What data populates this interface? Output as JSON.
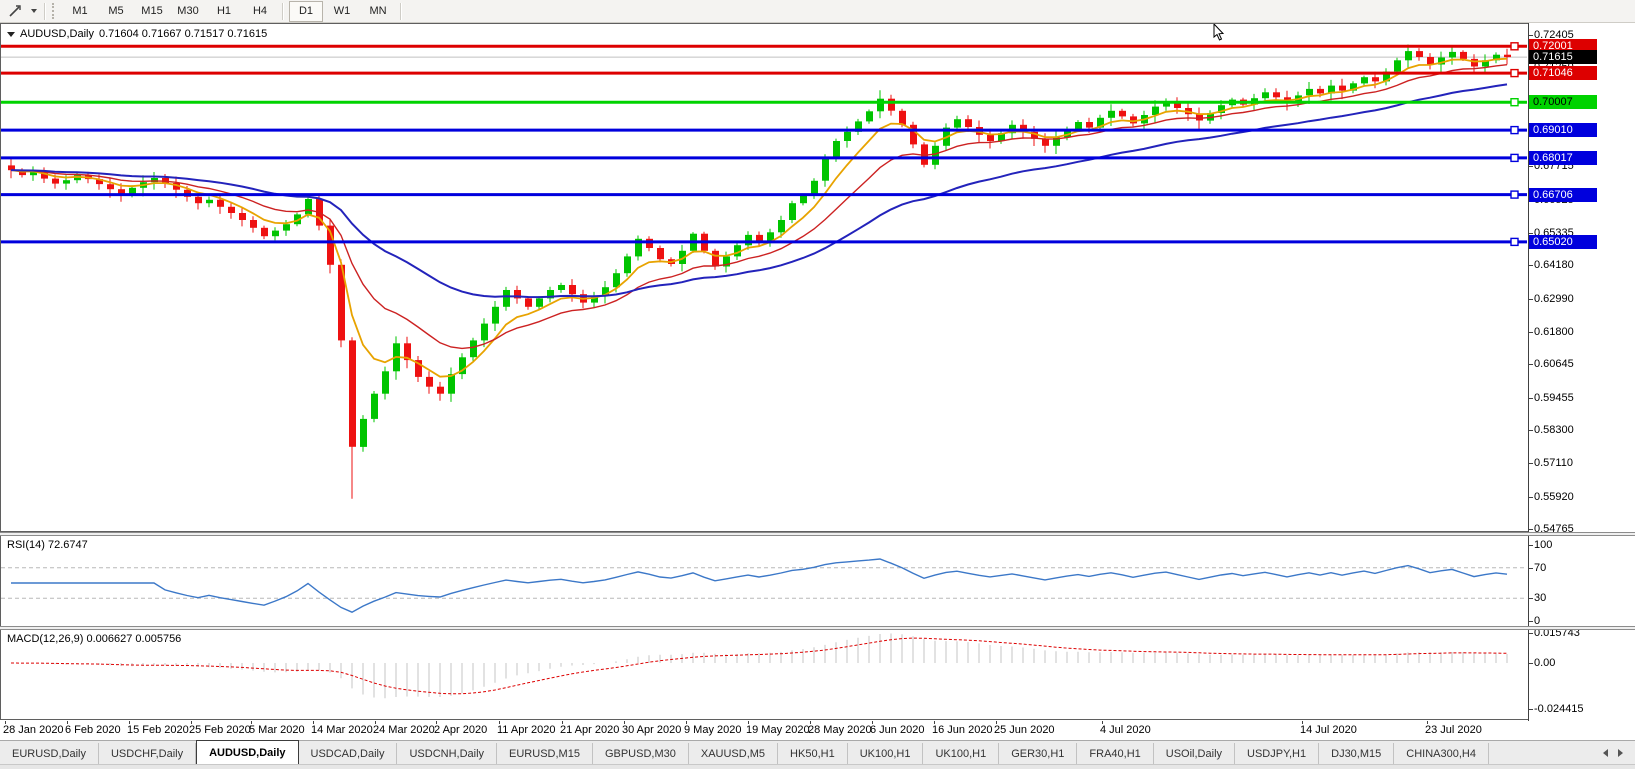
{
  "toolbar": {
    "timeframes": [
      "M1",
      "M5",
      "M15",
      "M30",
      "H1",
      "H4",
      "D1",
      "W1",
      "MN"
    ],
    "active_timeframe": "D1"
  },
  "chart_header": {
    "symbol_label": "AUDUSD,Daily",
    "ohlc_values": "0.71604 0.71667 0.71517 0.71615"
  },
  "indicators": {
    "rsi_label": "RSI(14)",
    "rsi_value": "72.6747",
    "macd_label": "MACD(12,26,9)",
    "macd_values": "0.006627 0.005756"
  },
  "tabs": {
    "items": [
      "EURUSD,Daily",
      "USDCHF,Daily",
      "AUDUSD,Daily",
      "USDCAD,Daily",
      "USDCNH,Daily",
      "EURUSD,M15",
      "GBPUSD,M30",
      "XAUUSD,M5",
      "HK50,H1",
      "UK100,H1",
      "UK100,H1",
      "GER30,H1",
      "FRA40,H1",
      "USOil,Daily",
      "USDJPY,H1",
      "DJ30,M15",
      "CHINA300,H4"
    ],
    "active_index": 2
  },
  "chart_data": {
    "type": "candlestick",
    "symbol": "AUDUSD",
    "timeframe": "Daily",
    "grid": false,
    "up_color": "#00c400",
    "down_color": "#ee1111",
    "price_axis_ticks": [
      "0.72405",
      "0.71250",
      "0.70060",
      "0.68870",
      "0.67715",
      "0.66525",
      "0.65335",
      "0.64180",
      "0.62990",
      "0.61800",
      "0.60645",
      "0.59455",
      "0.58300",
      "0.57110",
      "0.55920",
      "0.54765"
    ],
    "candles": {
      "first_open": 0.6775,
      "closes": [
        0.6758,
        0.674,
        0.6755,
        0.6728,
        0.671,
        0.6722,
        0.674,
        0.6726,
        0.6708,
        0.669,
        0.6672,
        0.6695,
        0.6715,
        0.673,
        0.6712,
        0.6688,
        0.6663,
        0.664,
        0.6652,
        0.6627,
        0.6605,
        0.658,
        0.6552,
        0.6522,
        0.6542,
        0.6565,
        0.66,
        0.6655,
        0.656,
        0.642,
        0.615,
        0.577,
        0.587,
        0.596,
        0.604,
        0.614,
        0.608,
        0.602,
        0.5985,
        0.596,
        0.603,
        0.609,
        0.615,
        0.621,
        0.627,
        0.633,
        0.63,
        0.627,
        0.63,
        0.633,
        0.6348,
        0.6315,
        0.6285,
        0.631,
        0.634,
        0.639,
        0.645,
        0.6513,
        0.648,
        0.644,
        0.6423,
        0.647,
        0.6531,
        0.647,
        0.6414,
        0.645,
        0.649,
        0.6527,
        0.65,
        0.6536,
        0.658,
        0.664,
        0.6667,
        0.672,
        0.6798,
        0.6862,
        0.6895,
        0.6932,
        0.6968,
        0.7013,
        0.697,
        0.692,
        0.685,
        0.6777,
        0.6845,
        0.691,
        0.694,
        0.6912,
        0.6884,
        0.6862,
        0.689,
        0.692,
        0.6895,
        0.687,
        0.6845,
        0.6875,
        0.6905,
        0.693,
        0.691,
        0.6945,
        0.697,
        0.695,
        0.6925,
        0.6955,
        0.6985,
        0.7002,
        0.698,
        0.6958,
        0.6935,
        0.6962,
        0.699,
        0.701,
        0.6992,
        0.7015,
        0.7036,
        0.7018,
        0.7,
        0.7025,
        0.7048,
        0.7032,
        0.706,
        0.7042,
        0.7068,
        0.709,
        0.7075,
        0.711,
        0.715,
        0.7183,
        0.7162,
        0.7135,
        0.716,
        0.718,
        0.7155,
        0.7128,
        0.715,
        0.717,
        0.71615
      ],
      "overrides": {
        "27": {
          "h": 0.6672
        },
        "31": {
          "l": 0.5585
        },
        "39": {
          "l": 0.5935
        },
        "64": {
          "l": 0.6402
        },
        "79": {
          "h": 0.7043
        },
        "131": {
          "h": 0.7197
        }
      }
    },
    "moving_averages": [
      {
        "period": 6,
        "color": "#e8a300",
        "width": 1.8
      },
      {
        "period": 14,
        "color": "#cc2222",
        "width": 1.4
      },
      {
        "period": 34,
        "color": "#2323bb",
        "width": 2
      }
    ],
    "hlines": [
      {
        "price": 0.72001,
        "label": "0.72001",
        "color": "#dd0000",
        "text_color": "#ffffff"
      },
      {
        "price": 0.71046,
        "label": "0.71046",
        "color": "#dd0000",
        "text_color": "#ffffff"
      },
      {
        "price": 0.70007,
        "label": "0.70007",
        "color": "#00d300",
        "text_color": "#000000"
      },
      {
        "price": 0.6901,
        "label": "0.69010",
        "color": "#0000dd",
        "text_color": "#ffffff"
      },
      {
        "price": 0.68017,
        "label": "0.68017",
        "color": "#0000dd",
        "text_color": "#ffffff"
      },
      {
        "price": 0.66706,
        "label": "0.66706",
        "color": "#0000dd",
        "text_color": "#ffffff"
      },
      {
        "price": 0.6502,
        "label": "0.65020",
        "color": "#0000dd",
        "text_color": "#ffffff"
      }
    ],
    "current_price_marker": {
      "price": 0.71615,
      "label": "0.71615",
      "bg": "#000000",
      "text_color": "#ffffff",
      "line_color": "#c0c0c0"
    },
    "time_axis": {
      "labels": [
        "28 Jan 2020",
        "6 Feb 2020",
        "15 Feb 2020",
        "25 Feb 2020",
        "5 Mar 2020",
        "14 Mar 2020",
        "24 Mar 2020",
        "2 Apr 2020",
        "11 Apr 2020",
        "21 Apr 2020",
        "30 Apr 2020",
        "9 May 2020",
        "19 May 2020",
        "28 May 2020",
        "6 Jun 2020",
        "16 Jun 2020",
        "25 Jun 2020",
        "4 Jul 2020",
        "14 Jul 2020",
        "23 Jul 2020"
      ],
      "x": [
        3,
        65,
        127,
        189,
        249,
        311,
        373,
        434,
        497,
        560,
        622,
        684,
        746,
        808,
        870,
        932,
        994,
        1100,
        1300,
        1425
      ]
    },
    "rsi": {
      "period": 14,
      "line_color": "#3c78c8",
      "level_color": "#b8b8b8",
      "levels": [
        70,
        30
      ],
      "axis_labels": [
        "100",
        "70",
        "30",
        "0"
      ],
      "axis_values": [
        100,
        70,
        30,
        0
      ]
    },
    "macd": {
      "fast": 12,
      "slow": 26,
      "signal": 9,
      "hist_color": "#c4c4c4",
      "signal_color": "#dd0000",
      "axis_labels": [
        "0.015743",
        "0.00",
        "-0.024415"
      ],
      "axis_values": [
        0.015743,
        0,
        -0.024415
      ]
    }
  }
}
